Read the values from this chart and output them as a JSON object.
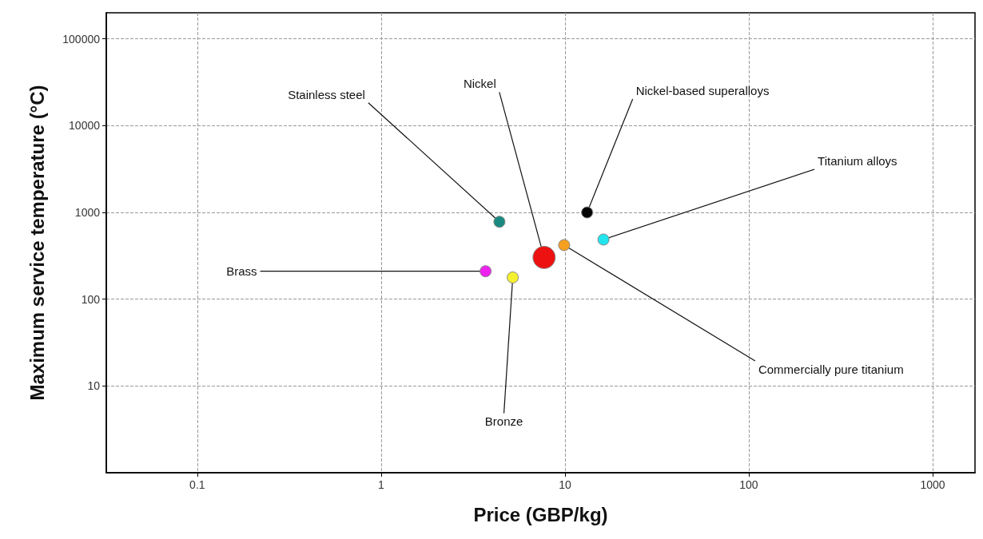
{
  "chart_data": {
    "type": "bubble",
    "xlabel": "Price (GBP/kg)",
    "ylabel": "Maximum service temperature (°C)",
    "x": [
      4.4,
      7.7,
      13.2,
      16.2,
      9.9,
      3.7,
      5.2
    ],
    "values": [
      780,
      303,
      1000,
      487,
      420,
      210,
      178
    ],
    "sizes": [
      0.25,
      1,
      0.25,
      0.25,
      0.25,
      0.25,
      0.25
    ],
    "colors": [
      "#1a8a80",
      "#ee1111",
      "#050505",
      "#22e5ee",
      "#f5a020",
      "#ee22ee",
      "#f5f030"
    ],
    "annotations": [
      {
        "text": "Stainless steel",
        "x": 4.4,
        "y": 780
      },
      {
        "text": "Nickel",
        "x": 7.7,
        "y": 303
      },
      {
        "text": "Nickel-based superalloys",
        "x": 13.2,
        "y": 1000
      },
      {
        "text": "Titanium alloys",
        "x": 16.2,
        "y": 487
      },
      {
        "text": "Commercially pure titanium",
        "x": 9.9,
        "y": 420
      },
      {
        "text": "Brass",
        "x": 3.7,
        "y": 210
      },
      {
        "text": "Bronze",
        "x": 5.2,
        "y": 178
      }
    ],
    "log": "xy",
    "xlim": [
      0.032,
      1700
    ],
    "ylim": [
      1,
      200000
    ],
    "xticks": [
      0.1,
      1,
      10,
      100,
      1000
    ],
    "yticks": [
      10,
      100,
      1000,
      10000,
      100000
    ],
    "grid": true
  }
}
